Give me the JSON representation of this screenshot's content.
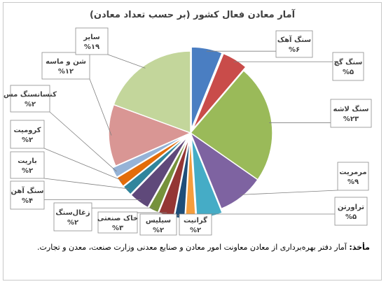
{
  "chart_data": {
    "type": "pie",
    "title": "آمار معادن فعال کشور (بر حسب تعداد معادن)",
    "slices": [
      {
        "label": "سنگ آهک",
        "value_text": "%۶",
        "value": 6,
        "color": "#4a7ec2"
      },
      {
        "label": "سنگ گچ",
        "value_text": "%۵",
        "value": 5,
        "color": "#c94c4a"
      },
      {
        "label": "سنگ لاشه",
        "value_text": "%۲۳",
        "value": 23,
        "color": "#9aba59"
      },
      {
        "label": "مرمریت",
        "value_text": "%۹",
        "value": 9,
        "color": "#7e63a1"
      },
      {
        "label": "تراورتن",
        "value_text": "%۵",
        "value": 5,
        "color": "#45acc6"
      },
      {
        "label": "گرانیت",
        "value_text": "%۲",
        "value": 2,
        "color": "#f59d3d"
      },
      {
        "label": "سیلیس",
        "value_text": "%۲",
        "value": 2,
        "color": "#1f4e79"
      },
      {
        "label": "خاک صنعتی",
        "value_text": "%۳",
        "value": 3,
        "color": "#943634"
      },
      {
        "label": "زغال‌سنگ",
        "value_text": "%۲",
        "value": 2,
        "color": "#76923c"
      },
      {
        "label": "سنگ آهن",
        "value_text": "%۴",
        "value": 4,
        "color": "#5f497a"
      },
      {
        "label": "باریت",
        "value_text": "%۲",
        "value": 2,
        "color": "#31859c"
      },
      {
        "label": "کرومیت",
        "value_text": "%۲",
        "value": 2,
        "color": "#e36c09"
      },
      {
        "label": "کنسانسنگ مس",
        "value_text": "%۲",
        "value": 2,
        "color": "#95b3d7"
      },
      {
        "label": "شن و ماسه",
        "value_text": "%۱۲",
        "value": 12,
        "color": "#d99694"
      },
      {
        "label": "سایر",
        "value_text": "%۱۹",
        "value": 19,
        "color": "#c3d69b"
      }
    ]
  },
  "source": {
    "label": "مأخذ:",
    "text": "آمار دفتر بهره‌برداری از معادن معاونت امور معادن و صنایع معدنی وزارت صنعت، معدن و تجارت."
  }
}
